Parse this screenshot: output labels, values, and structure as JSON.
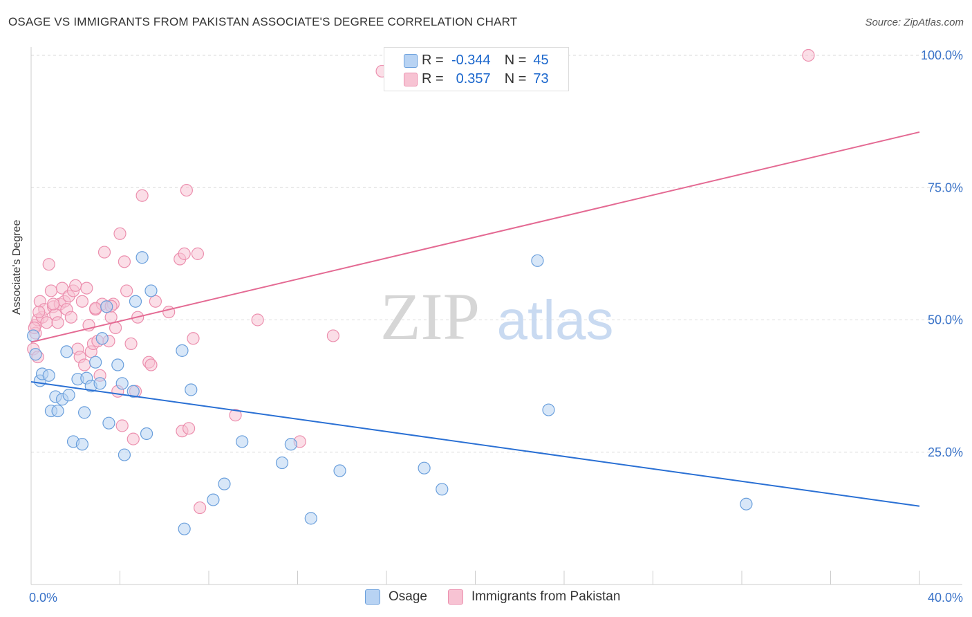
{
  "header": {
    "title": "OSAGE VS IMMIGRANTS FROM PAKISTAN ASSOCIATE'S DEGREE CORRELATION CHART",
    "source": "Source: ZipAtlas.com"
  },
  "watermark": {
    "zip": "ZIP",
    "atlas": "atlas"
  },
  "legend_top": [
    {
      "r_label": "R =",
      "r_value": "-0.344",
      "n_label": "N =",
      "n_value": "45"
    },
    {
      "r_label": "R =",
      "r_value": "0.357",
      "n_label": "N =",
      "n_value": "73"
    }
  ],
  "legend_bottom": [
    {
      "label": "Osage"
    },
    {
      "label": "Immigrants from Pakistan"
    }
  ],
  "colors": {
    "osage_fill": "#b8d3f3",
    "osage_stroke": "#6a9fdc",
    "osage_line": "#2a70d4",
    "pak_fill": "#f7c3d3",
    "pak_stroke": "#ec8fae",
    "pak_line": "#e46a93",
    "tick_label": "#3a73c8",
    "grid": "#d9d9d9"
  },
  "chart_data": {
    "type": "scatter",
    "title": "OSAGE VS IMMIGRANTS FROM PAKISTAN ASSOCIATE'S DEGREE CORRELATION CHART",
    "xlabel": "",
    "ylabel": "Associate's Degree",
    "xlim": [
      0,
      40
    ],
    "ylim": [
      0,
      100
    ],
    "x_tick_labels": [
      "0.0%",
      "40.0%"
    ],
    "y_tick_labels": [
      "25.0%",
      "50.0%",
      "75.0%",
      "100.0%"
    ],
    "y_ticks": [
      25,
      50,
      75,
      100
    ],
    "grid": true,
    "legend_position": "top-center",
    "series": [
      {
        "name": "Osage",
        "r": -0.344,
        "n": 45,
        "trend": {
          "x": [
            0,
            40
          ],
          "y": [
            38.3,
            14.8
          ]
        },
        "points": [
          [
            0.1,
            47.0
          ],
          [
            0.2,
            43.5
          ],
          [
            0.4,
            38.5
          ],
          [
            0.5,
            39.8
          ],
          [
            0.8,
            39.5
          ],
          [
            0.9,
            32.8
          ],
          [
            1.1,
            35.5
          ],
          [
            1.2,
            32.8
          ],
          [
            1.4,
            35.0
          ],
          [
            1.6,
            44.0
          ],
          [
            1.7,
            35.8
          ],
          [
            1.9,
            27.0
          ],
          [
            2.1,
            38.8
          ],
          [
            2.3,
            26.5
          ],
          [
            2.4,
            32.5
          ],
          [
            2.5,
            39.0
          ],
          [
            2.7,
            37.5
          ],
          [
            2.9,
            42.0
          ],
          [
            3.1,
            38.0
          ],
          [
            3.2,
            46.5
          ],
          [
            3.5,
            30.5
          ],
          [
            3.4,
            52.5
          ],
          [
            3.9,
            41.5
          ],
          [
            4.1,
            38.0
          ],
          [
            4.2,
            24.5
          ],
          [
            4.7,
            53.5
          ],
          [
            4.6,
            36.5
          ],
          [
            5.0,
            61.8
          ],
          [
            5.2,
            28.5
          ],
          [
            5.4,
            55.5
          ],
          [
            6.8,
            44.2
          ],
          [
            6.9,
            10.5
          ],
          [
            7.2,
            36.8
          ],
          [
            8.2,
            16.0
          ],
          [
            8.7,
            19.0
          ],
          [
            9.5,
            27.0
          ],
          [
            11.3,
            23.0
          ],
          [
            11.7,
            26.5
          ],
          [
            12.6,
            12.5
          ],
          [
            13.9,
            21.5
          ],
          [
            17.7,
            22.0
          ],
          [
            18.5,
            18.0
          ],
          [
            22.8,
            61.2
          ],
          [
            23.3,
            33.0
          ],
          [
            32.2,
            15.2
          ]
        ]
      },
      {
        "name": "Immigrants from Pakistan",
        "r": 0.357,
        "n": 73,
        "trend": {
          "x": [
            0,
            40
          ],
          "y": [
            45.8,
            85.5
          ]
        },
        "points": [
          [
            0.1,
            44.5
          ],
          [
            0.2,
            49.0
          ],
          [
            0.2,
            47.5
          ],
          [
            0.3,
            50.0
          ],
          [
            0.3,
            43.0
          ],
          [
            0.4,
            53.5
          ],
          [
            0.5,
            50.5
          ],
          [
            0.6,
            52.0
          ],
          [
            0.7,
            49.5
          ],
          [
            0.8,
            60.5
          ],
          [
            0.9,
            55.5
          ],
          [
            1.0,
            52.5
          ],
          [
            1.1,
            51.0
          ],
          [
            1.2,
            49.5
          ],
          [
            1.3,
            53.0
          ],
          [
            1.4,
            56.0
          ],
          [
            1.5,
            53.5
          ],
          [
            1.6,
            52.0
          ],
          [
            1.7,
            54.5
          ],
          [
            1.8,
            50.5
          ],
          [
            1.9,
            55.5
          ],
          [
            2.0,
            56.5
          ],
          [
            2.1,
            44.5
          ],
          [
            2.2,
            43.0
          ],
          [
            2.3,
            53.5
          ],
          [
            2.4,
            41.5
          ],
          [
            2.5,
            56.0
          ],
          [
            2.6,
            49.0
          ],
          [
            2.7,
            44.0
          ],
          [
            2.8,
            45.5
          ],
          [
            2.9,
            52.0
          ],
          [
            3.0,
            46.0
          ],
          [
            3.1,
            39.5
          ],
          [
            3.2,
            53.0
          ],
          [
            3.3,
            62.8
          ],
          [
            3.4,
            52.5
          ],
          [
            3.5,
            46.0
          ],
          [
            3.6,
            50.5
          ],
          [
            3.7,
            53.0
          ],
          [
            3.8,
            48.5
          ],
          [
            3.9,
            36.5
          ],
          [
            4.0,
            66.3
          ],
          [
            4.1,
            30.0
          ],
          [
            4.2,
            61.0
          ],
          [
            4.3,
            55.5
          ],
          [
            4.5,
            45.5
          ],
          [
            4.6,
            27.5
          ],
          [
            4.7,
            36.5
          ],
          [
            4.8,
            50.5
          ],
          [
            5.0,
            73.5
          ],
          [
            5.3,
            42.0
          ],
          [
            5.4,
            41.5
          ],
          [
            5.6,
            53.5
          ],
          [
            6.2,
            51.5
          ],
          [
            6.7,
            61.5
          ],
          [
            6.8,
            29.0
          ],
          [
            6.9,
            62.5
          ],
          [
            7.1,
            29.5
          ],
          [
            7.0,
            74.5
          ],
          [
            7.3,
            46.5
          ],
          [
            7.5,
            62.5
          ],
          [
            7.6,
            14.5
          ],
          [
            9.2,
            32.0
          ],
          [
            10.2,
            50.0
          ],
          [
            12.1,
            27.0
          ],
          [
            13.6,
            47.0
          ],
          [
            15.8,
            97.0
          ],
          [
            35.0,
            100.0
          ],
          [
            0.15,
            48.5
          ],
          [
            0.35,
            51.5
          ],
          [
            1.0,
            53.0
          ],
          [
            2.9,
            52.2
          ],
          [
            3.6,
            52.6
          ]
        ]
      }
    ]
  }
}
